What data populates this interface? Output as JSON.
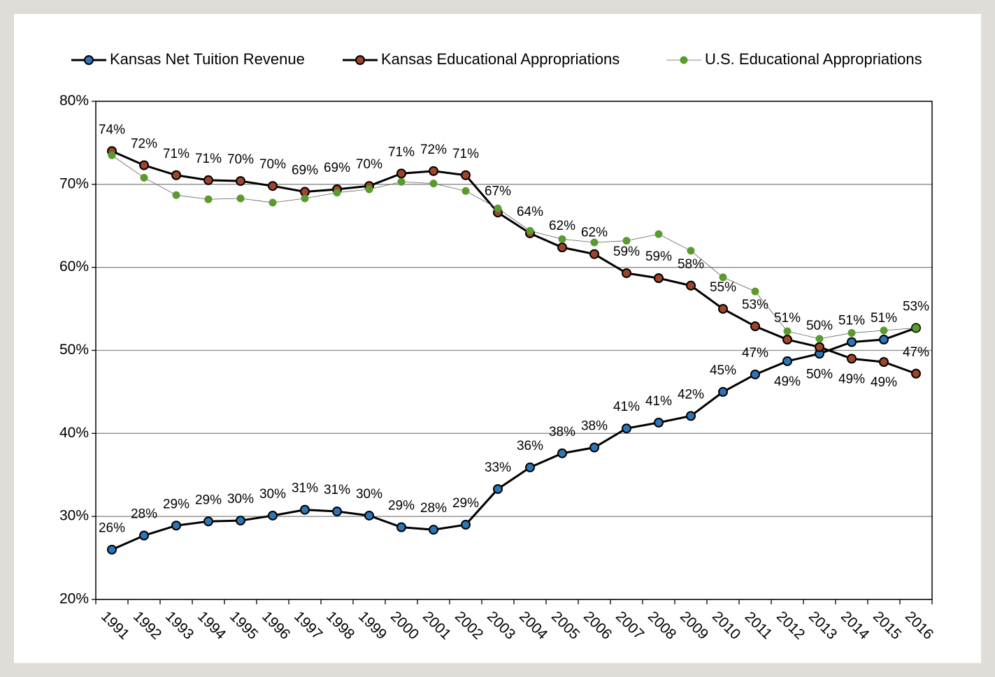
{
  "chart_data": {
    "type": "line",
    "categories": [
      "1991",
      "1992",
      "1993",
      "1994",
      "1995",
      "1996",
      "1997",
      "1998",
      "1999",
      "2000",
      "2001",
      "2002",
      "2003",
      "2004",
      "2005",
      "2006",
      "2007",
      "2008",
      "2009",
      "2010",
      "2011",
      "2012",
      "2013",
      "2014",
      "2015",
      "2016"
    ],
    "ylim": [
      20,
      80
    ],
    "yticks": [
      {
        "value": 20,
        "label": "20%"
      },
      {
        "value": 30,
        "label": "30%"
      },
      {
        "value": 40,
        "label": "40%"
      },
      {
        "value": 50,
        "label": "50%"
      },
      {
        "value": 60,
        "label": "60%"
      },
      {
        "value": 70,
        "label": "70%"
      },
      {
        "value": 80,
        "label": "80%"
      }
    ],
    "grid": true,
    "legend": "top",
    "series": [
      {
        "name": "Kansas Net Tuition Revenue",
        "color": "#2e75b6",
        "values": [
          26.0,
          27.7,
          28.9,
          29.4,
          29.5,
          30.1,
          30.8,
          30.6,
          30.1,
          28.7,
          28.4,
          29.0,
          33.3,
          35.9,
          37.6,
          38.3,
          40.6,
          41.3,
          42.1,
          45.0,
          47.1,
          48.7,
          49.6,
          51.0,
          51.3,
          52.7
        ],
        "value_labels": [
          "26%",
          "28%",
          "29%",
          "29%",
          "30%",
          "30%",
          "31%",
          "31%",
          "30%",
          "29%",
          "28%",
          "29%",
          "33%",
          "36%",
          "38%",
          "38%",
          "41%",
          "41%",
          "42%",
          "45%",
          "47%",
          "49%",
          "50%",
          "51%",
          "51%",
          "53%"
        ]
      },
      {
        "name": "Kansas Educational Appropriations",
        "color": "#a0442c",
        "values": [
          74.0,
          72.3,
          71.1,
          70.5,
          70.4,
          69.8,
          69.1,
          69.4,
          69.8,
          71.3,
          71.6,
          71.1,
          66.6,
          64.1,
          62.4,
          61.6,
          59.3,
          58.7,
          57.8,
          55.0,
          52.9,
          51.3,
          50.4,
          49.0,
          48.6,
          47.2
        ],
        "value_labels": [
          "74%",
          "72%",
          "71%",
          "71%",
          "70%",
          "70%",
          "69%",
          "69%",
          "70%",
          "71%",
          "72%",
          "71%",
          "67%",
          "64%",
          "62%",
          "62%",
          "59%",
          "59%",
          "58%",
          "55%",
          "53%",
          "51%",
          "50%",
          "49%",
          "49%",
          "47%"
        ]
      },
      {
        "name": "U.S. Educational Appropriations",
        "color": "#5a9a2e",
        "values": [
          73.5,
          70.8,
          68.7,
          68.2,
          68.3,
          67.8,
          68.3,
          69.0,
          69.4,
          70.3,
          70.1,
          69.2,
          67.1,
          64.4,
          63.4,
          63.0,
          63.2,
          64.0,
          62.0,
          58.8,
          57.1,
          52.3,
          51.4,
          52.1,
          52.4,
          52.7
        ]
      }
    ]
  }
}
